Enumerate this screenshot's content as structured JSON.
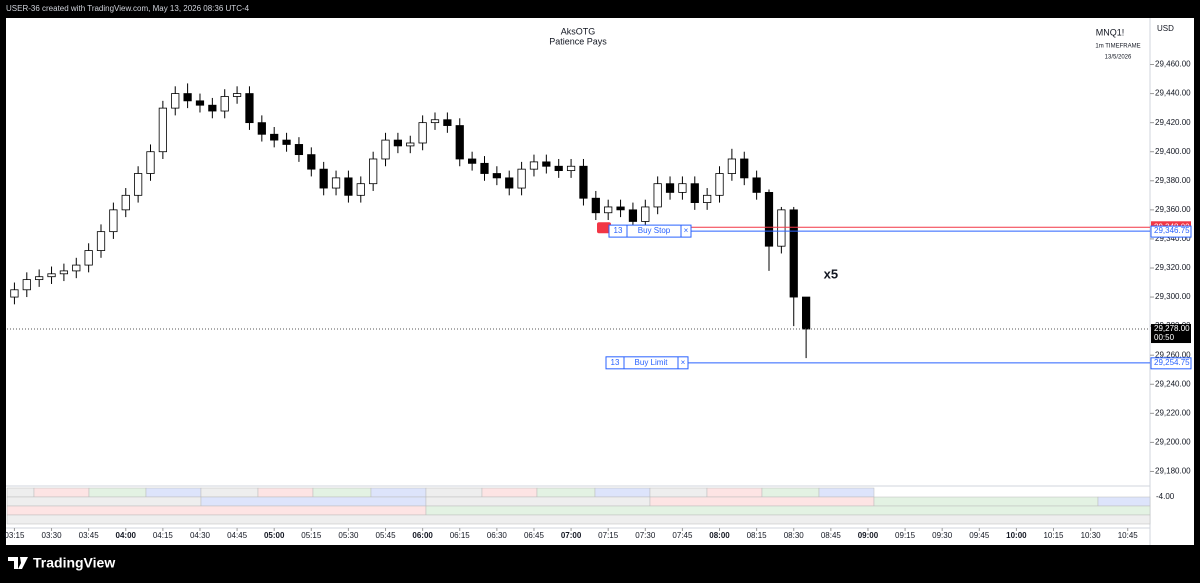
{
  "header": {
    "watermark": "USER-36 created with TradingView.com, May 13, 2026 08:36 UTC-4"
  },
  "footer": {
    "brand": "TradingView"
  },
  "chart_data": {
    "type": "candlestick",
    "title": "AksOTG",
    "subtitle": "Patience Pays",
    "symbol": "MNQ1!",
    "timeframe": "1m TIMEFRAME",
    "date": "13/5/2026",
    "currency": "USD",
    "annotation": {
      "text": "x5",
      "x": "08:45",
      "y": 29315
    },
    "x": [
      "03:15",
      "03:20",
      "03:25",
      "03:30",
      "03:35",
      "03:40",
      "03:45",
      "03:50",
      "03:55",
      "04:00",
      "04:05",
      "04:10",
      "04:15",
      "04:20",
      "04:25",
      "04:30",
      "04:35",
      "04:40",
      "04:45",
      "04:50",
      "04:55",
      "05:00",
      "05:05",
      "05:10",
      "05:15",
      "05:20",
      "05:25",
      "05:30",
      "05:35",
      "05:40",
      "05:45",
      "05:50",
      "05:55",
      "06:00",
      "06:05",
      "06:10",
      "06:15",
      "06:20",
      "06:25",
      "06:30",
      "06:35",
      "06:40",
      "06:45",
      "06:50",
      "06:55",
      "07:00",
      "07:05",
      "07:10",
      "07:15",
      "07:20",
      "07:25",
      "07:30",
      "07:35",
      "07:40",
      "07:45",
      "07:50",
      "07:55",
      "08:00",
      "08:05",
      "08:10",
      "08:15",
      "08:20",
      "08:25",
      "08:30",
      "08:35"
    ],
    "open": [
      29300,
      29305,
      29312,
      29314,
      29316,
      29318,
      29322,
      29332,
      29345,
      29360,
      29370,
      29385,
      29400,
      29430,
      29440,
      29435,
      29432,
      29428,
      29438,
      29440,
      29420,
      29412,
      29408,
      29405,
      29398,
      29388,
      29375,
      29382,
      29370,
      29378,
      29395,
      29408,
      29404,
      29406,
      29420,
      29422,
      29418,
      29395,
      29392,
      29385,
      29382,
      29375,
      29388,
      29393,
      29390,
      29387,
      29390,
      29368,
      29358,
      29362,
      29360,
      29352,
      29362,
      29378,
      29372,
      29378,
      29365,
      29370,
      29385,
      29395,
      29382,
      29372,
      29335,
      29360,
      29300
    ],
    "high": [
      29310,
      29317,
      29319,
      29321,
      29323,
      29327,
      29337,
      29350,
      29365,
      29375,
      29390,
      29405,
      29435,
      29445,
      29447,
      29440,
      29437,
      29443,
      29445,
      29445,
      29425,
      29417,
      29413,
      29410,
      29403,
      29393,
      29387,
      29387,
      29383,
      29400,
      29413,
      29413,
      29411,
      29425,
      29427,
      29427,
      29423,
      29400,
      29397,
      29390,
      29387,
      29393,
      29398,
      29398,
      29395,
      29395,
      29395,
      29373,
      29367,
      29367,
      29365,
      29367,
      29383,
      29383,
      29383,
      29383,
      29375,
      29390,
      29402,
      29400,
      29387,
      29374,
      29362,
      29362,
      29298
    ],
    "low": [
      29295,
      29300,
      29307,
      29309,
      29311,
      29313,
      29317,
      29327,
      29340,
      29355,
      29365,
      29380,
      29395,
      29425,
      29430,
      29427,
      29423,
      29423,
      29433,
      29415,
      29407,
      29403,
      29400,
      29393,
      29383,
      29370,
      29370,
      29365,
      29365,
      29373,
      29390,
      29399,
      29399,
      29401,
      29415,
      29413,
      29390,
      29387,
      29380,
      29377,
      29370,
      29370,
      29383,
      29385,
      29382,
      29382,
      29363,
      29353,
      29353,
      29355,
      29347,
      29347,
      29357,
      29367,
      29367,
      29360,
      29360,
      29365,
      29380,
      29377,
      29367,
      29318,
      29330,
      29280,
      29258
    ],
    "close": [
      29305,
      29312,
      29314,
      29316,
      29318,
      29322,
      29332,
      29345,
      29360,
      29370,
      29385,
      29400,
      29430,
      29440,
      29435,
      29432,
      29428,
      29438,
      29440,
      29420,
      29412,
      29408,
      29405,
      29398,
      29388,
      29375,
      29382,
      29370,
      29378,
      29395,
      29408,
      29404,
      29406,
      29420,
      29422,
      29418,
      29395,
      29392,
      29385,
      29382,
      29375,
      29388,
      29393,
      29390,
      29387,
      29390,
      29368,
      29358,
      29362,
      29360,
      29352,
      29362,
      29378,
      29372,
      29378,
      29365,
      29370,
      29385,
      29395,
      29382,
      29372,
      29335,
      29360,
      29300,
      29278
    ],
    "up_color": "#ffffff",
    "down_color": "#000000",
    "border_color": "#000000",
    "xlim": [
      "03:12",
      "10:54"
    ],
    "xticks": [
      "03:15",
      "03:30",
      "03:45",
      "04:00",
      "04:15",
      "04:30",
      "04:45",
      "05:00",
      "05:15",
      "05:30",
      "05:45",
      "06:00",
      "06:15",
      "06:30",
      "06:45",
      "07:00",
      "07:15",
      "07:30",
      "07:45",
      "08:00",
      "08:15",
      "08:30",
      "08:45",
      "09:00",
      "09:15",
      "09:30",
      "09:45",
      "10:00",
      "10:15",
      "10:30",
      "10:45"
    ],
    "ylim": [
      29170,
      29492
    ],
    "yticks": [
      {
        "value": 29180,
        "label": "29,180.00"
      },
      {
        "value": 29200,
        "label": "29,200.00"
      },
      {
        "value": 29220,
        "label": "29,220.00"
      },
      {
        "value": 29240,
        "label": "29,240.00"
      },
      {
        "value": 29260,
        "label": "29,260.00"
      },
      {
        "value": 29280,
        "label": "29,280.00"
      },
      {
        "value": 29300,
        "label": "29,300.00"
      },
      {
        "value": 29320,
        "label": "29,320.00"
      },
      {
        "value": 29340,
        "label": "29,340.00"
      },
      {
        "value": 29360,
        "label": "29,360.00"
      },
      {
        "value": 29380,
        "label": "29,380.00"
      },
      {
        "value": 29400,
        "label": "29,400.00"
      },
      {
        "value": 29420,
        "label": "29,420.00"
      },
      {
        "value": 29440,
        "label": "29,440.00"
      },
      {
        "value": 29460,
        "label": "29,460.00"
      }
    ],
    "grid": false,
    "last_price": {
      "value": 29278,
      "label": "29,278.00",
      "countdown": "00:50"
    },
    "position": {
      "value": 29348,
      "label": "29,348.00",
      "color": "#f23645"
    },
    "orders": [
      {
        "qty": "13",
        "label": "Buy Stop",
        "cancel": "×",
        "value": 29346.75,
        "price_label": "29,346.75",
        "color": "#2962ff"
      },
      {
        "qty": "13",
        "label": "Buy Limit",
        "cancel": "×",
        "value": 29254.75,
        "price_label": "29,254.75",
        "color": "#2962ff"
      }
    ],
    "indicator_label": "-4.00"
  }
}
